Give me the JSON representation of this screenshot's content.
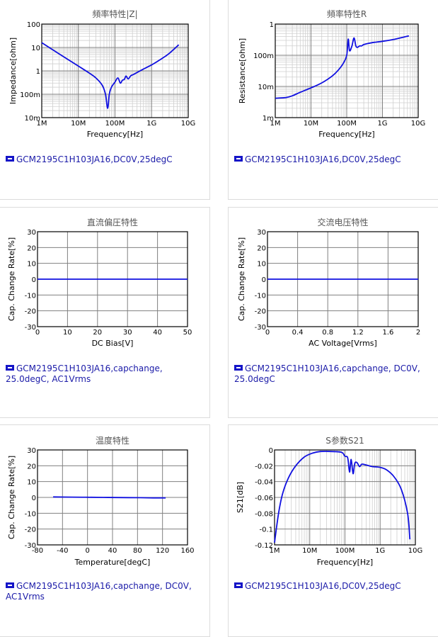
{
  "colors": {
    "series": "#1010e0",
    "grid": "#808080",
    "minor": "#cfcfcf",
    "legend_text": "#1a1aa8"
  },
  "charts": [
    {
      "id": "impedance",
      "title": "頻率特性|Z|",
      "xlabel": "Frequency[Hz]",
      "ylabel": "Impedance[ohm]",
      "xticks": [
        "1M",
        "10M",
        "100M",
        "1G",
        "10G"
      ],
      "yticks": [
        "100",
        "10",
        "1",
        "100m",
        "10m"
      ],
      "legend": "GCM2195C1H103JA16,DC0V,25degC"
    },
    {
      "id": "resistance",
      "title": "頻率特性R",
      "xlabel": "Frequency[Hz]",
      "ylabel": "Resistance[ohm]",
      "xticks": [
        "1M",
        "10M",
        "100M",
        "1G",
        "10G"
      ],
      "yticks": [
        "1",
        "100m",
        "10m",
        "1m"
      ],
      "legend": "GCM2195C1H103JA16,DC0V,25degC"
    },
    {
      "id": "dcbias",
      "title": "直流偏圧特性",
      "xlabel": "DC Bias[V]",
      "ylabel": "Cap. Change Rate[%]",
      "xticks": [
        "0",
        "10",
        "20",
        "30",
        "40",
        "50"
      ],
      "yticks": [
        "30",
        "20",
        "10",
        "0",
        "-10",
        "-20",
        "-30"
      ],
      "legend": "GCM2195C1H103JA16,capchange, 25.0degC, AC1Vrms"
    },
    {
      "id": "acvoltage",
      "title": "交流电压特性",
      "xlabel": "AC Voltage[Vrms]",
      "ylabel": "Cap. Change Rate[%]",
      "xticks": [
        "0",
        "0.4",
        "0.8",
        "1.2",
        "1.6",
        "2"
      ],
      "yticks": [
        "30",
        "20",
        "10",
        "0",
        "-10",
        "-20",
        "-30"
      ],
      "legend": "GCM2195C1H103JA16,capchange, DC0V, 25.0degC"
    },
    {
      "id": "temperature",
      "title": "温度特性",
      "xlabel": "Temperature[degC]",
      "ylabel": "Cap. Change Rate[%]",
      "xticks": [
        "-80",
        "-40",
        "0",
        "40",
        "80",
        "120",
        "160"
      ],
      "yticks": [
        "30",
        "20",
        "10",
        "0",
        "-10",
        "-20",
        "-30"
      ],
      "legend": "GCM2195C1H103JA16,capchange, DC0V, AC1Vrms"
    },
    {
      "id": "s21",
      "title": "S参数S21",
      "xlabel": "Frequency[Hz]",
      "ylabel": "S21[dB]",
      "xticks": [
        "1M",
        "10M",
        "100M",
        "1G",
        "10G"
      ],
      "yticks": [
        "0",
        "-0.02",
        "-0.04",
        "-0.06",
        "-0.08",
        "-0.1",
        "-0.12"
      ],
      "legend": "GCM2195C1H103JA16,DC0V,25degC"
    }
  ],
  "chart_data": [
    {
      "type": "line",
      "title": "頻率特性|Z|",
      "xlabel": "Frequency[Hz]",
      "ylabel": "Impedance[ohm]",
      "xscale": "log",
      "yscale": "log",
      "xlim": [
        1000000.0,
        10000000000.0
      ],
      "ylim": [
        0.01,
        100
      ],
      "grid": true,
      "series": [
        {
          "name": "GCM2195C1H103JA16,DC0V,25degC",
          "x": [
            1000000.0,
            3000000.0,
            10000000.0,
            20000000.0,
            30000000.0,
            45000000.0,
            55000000.0,
            63000000.0,
            70000000.0,
            80000000.0,
            100000000.0,
            120000000.0,
            140000000.0,
            160000000.0,
            180000000.0,
            200000000.0,
            230000000.0,
            270000000.0,
            320000000.0,
            400000000.0,
            600000000.0,
            1000000000.0,
            2000000000.0,
            3000000000.0,
            5500000000.0
          ],
          "y": [
            16,
            5.3,
            1.6,
            0.8,
            0.5,
            0.24,
            0.1,
            0.025,
            0.1,
            0.2,
            0.33,
            0.5,
            0.3,
            0.4,
            0.43,
            0.6,
            0.45,
            0.62,
            0.7,
            0.85,
            1.2,
            1.8,
            3.5,
            5.5,
            13
          ]
        }
      ]
    },
    {
      "type": "line",
      "title": "頻率特性R",
      "xlabel": "Frequency[Hz]",
      "ylabel": "Resistance[ohm]",
      "xscale": "log",
      "yscale": "log",
      "xlim": [
        1000000.0,
        10000000000.0
      ],
      "ylim": [
        0.001,
        1
      ],
      "grid": true,
      "series": [
        {
          "name": "GCM2195C1H103JA16,DC0V,25degC",
          "x": [
            1000000.0,
            2000000.0,
            3000000.0,
            5000000.0,
            10000000.0,
            20000000.0,
            40000000.0,
            60000000.0,
            80000000.0,
            100000000.0,
            110000000.0,
            120000000.0,
            140000000.0,
            160000000.0,
            180000000.0,
            200000000.0,
            230000000.0,
            260000000.0,
            300000000.0,
            400000000.0,
            600000000.0,
            1000000000.0,
            2000000000.0,
            5500000000.0
          ],
          "y": [
            0.0042,
            0.0044,
            0.005,
            0.0065,
            0.009,
            0.013,
            0.022,
            0.035,
            0.055,
            0.1,
            0.33,
            0.14,
            0.2,
            0.36,
            0.2,
            0.18,
            0.2,
            0.2,
            0.22,
            0.24,
            0.26,
            0.28,
            0.32,
            0.42
          ]
        }
      ]
    },
    {
      "type": "line",
      "title": "直流偏圧特性",
      "xlabel": "DC Bias[V]",
      "ylabel": "Cap. Change Rate[%]",
      "xlim": [
        0,
        50
      ],
      "ylim": [
        -30,
        30
      ],
      "grid": true,
      "series": [
        {
          "name": "GCM2195C1H103JA16,capchange, 25.0degC, AC1Vrms",
          "x": [
            0,
            10,
            20,
            30,
            40,
            50
          ],
          "y": [
            0,
            0,
            0,
            0,
            0,
            0
          ]
        }
      ]
    },
    {
      "type": "line",
      "title": "交流电压特性",
      "xlabel": "AC Voltage[Vrms]",
      "ylabel": "Cap. Change Rate[%]",
      "xlim": [
        0,
        2
      ],
      "ylim": [
        -30,
        30
      ],
      "grid": true,
      "series": [
        {
          "name": "GCM2195C1H103JA16,capchange, DC0V, 25.0degC",
          "x": [
            0,
            0.4,
            0.8,
            1.2,
            1.6,
            2
          ],
          "y": [
            0,
            0,
            0,
            0,
            0,
            0
          ]
        }
      ]
    },
    {
      "type": "line",
      "title": "温度特性",
      "xlabel": "Temperature[degC]",
      "ylabel": "Cap. Change Rate[%]",
      "xlim": [
        -80,
        160
      ],
      "ylim": [
        -30,
        30
      ],
      "grid": true,
      "series": [
        {
          "name": "GCM2195C1H103JA16,capchange, DC0V, AC1Vrms",
          "x": [
            -55,
            -25,
            0,
            25,
            50,
            85,
            105,
            125
          ],
          "y": [
            0.3,
            0.2,
            0.1,
            0,
            -0.1,
            -0.2,
            -0.3,
            -0.3
          ]
        }
      ]
    },
    {
      "type": "line",
      "title": "S参数S21",
      "xlabel": "Frequency[Hz]",
      "ylabel": "S21[dB]",
      "xscale": "log",
      "xlim": [
        1000000.0,
        10000000000.0
      ],
      "ylim": [
        -0.12,
        0
      ],
      "grid": true,
      "series": [
        {
          "name": "GCM2195C1H103JA16,DC0V,25degC",
          "x": [
            1000000.0,
            1300000.0,
            1700000.0,
            2500000.0,
            4000000.0,
            7000000.0,
            12000000.0,
            20000000.0,
            40000000.0,
            80000000.0,
            100000000.0,
            120000000.0,
            135000000.0,
            150000000.0,
            170000000.0,
            190000000.0,
            220000000.0,
            260000000.0,
            300000000.0,
            400000000.0,
            600000000.0,
            1000000000.0,
            1500000000.0,
            2500000000.0,
            4000000000.0,
            6000000000.0,
            7000000000.0
          ],
          "y": [
            -0.117,
            -0.08,
            -0.055,
            -0.035,
            -0.02,
            -0.009,
            -0.004,
            -0.002,
            -0.002,
            -0.003,
            -0.008,
            -0.01,
            -0.028,
            -0.012,
            -0.03,
            -0.017,
            -0.016,
            -0.021,
            -0.018,
            -0.019,
            -0.021,
            -0.022,
            -0.025,
            -0.034,
            -0.05,
            -0.08,
            -0.113
          ]
        }
      ]
    }
  ]
}
